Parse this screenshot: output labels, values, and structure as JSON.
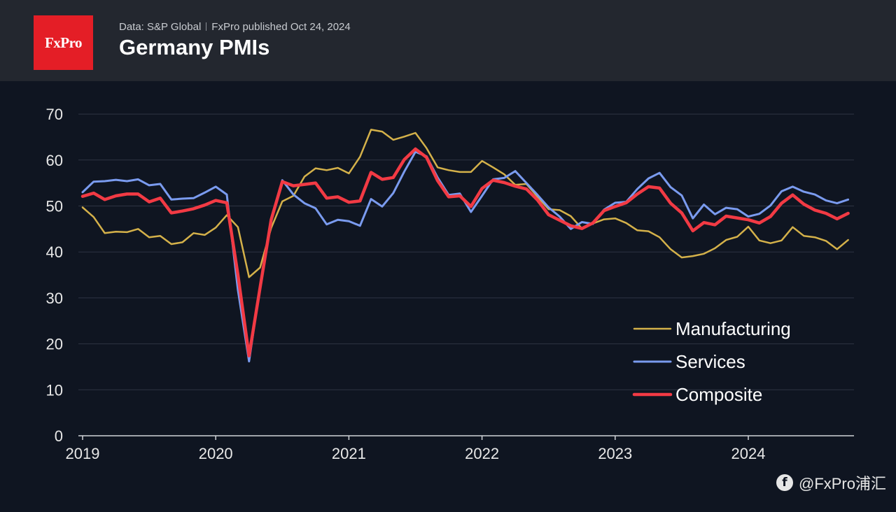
{
  "header": {
    "logo_text": "FxPro",
    "source": "Data: S&P Global",
    "published": "FxPro published Oct 24, 2024",
    "title": "Germany PMIs"
  },
  "watermark": {
    "text": "@FxPro浦汇",
    "icon": "social-app-icon"
  },
  "colors": {
    "background": "#0f1521",
    "header": "#23272f",
    "logo": "#e41e26",
    "manufacturing": "#d4b14a",
    "services": "#7a9bef",
    "composite": "#f23a44",
    "grid": "#2e3543"
  },
  "chart_data": {
    "type": "line",
    "title": "Germany PMIs",
    "xlabel": "",
    "ylabel": "",
    "ylim": [
      0,
      70
    ],
    "yticks": [
      0,
      10,
      20,
      30,
      40,
      50,
      60,
      70
    ],
    "xticks": [
      "2019",
      "2020",
      "2021",
      "2022",
      "2023",
      "2024"
    ],
    "x_start": "2019-01",
    "x_end": "2024-10",
    "grid": true,
    "legend_position": "lower-right",
    "series": [
      {
        "name": "Manufacturing",
        "values": [
          49.7,
          47.6,
          44.1,
          44.4,
          44.3,
          45.0,
          43.2,
          43.5,
          41.7,
          42.1,
          44.1,
          43.7,
          45.3,
          48.0,
          45.4,
          34.5,
          36.6,
          45.2,
          51.0,
          52.2,
          56.4,
          58.2,
          57.8,
          58.3,
          57.1,
          60.7,
          66.6,
          66.2,
          64.4,
          65.1,
          65.9,
          62.6,
          58.4,
          57.8,
          57.4,
          57.4,
          59.8,
          58.4,
          56.9,
          54.6,
          54.8,
          52.0,
          49.3,
          49.1,
          47.8,
          45.1,
          46.2,
          47.1,
          47.3,
          46.3,
          44.7,
          44.5,
          43.2,
          40.6,
          38.8,
          39.1,
          39.6,
          40.8,
          42.6,
          43.3,
          45.5,
          42.5,
          41.9,
          42.5,
          45.4,
          43.5,
          43.2,
          42.4,
          40.6,
          42.6
        ]
      },
      {
        "name": "Services",
        "values": [
          53.0,
          55.3,
          55.4,
          55.7,
          55.4,
          55.8,
          54.5,
          54.8,
          51.4,
          51.6,
          51.7,
          52.9,
          54.2,
          52.5,
          31.7,
          16.2,
          32.6,
          47.3,
          55.6,
          52.5,
          50.6,
          49.5,
          46.0,
          47.0,
          46.7,
          45.7,
          51.5,
          49.9,
          52.8,
          57.5,
          61.8,
          60.8,
          56.2,
          52.4,
          52.7,
          48.7,
          52.2,
          55.8,
          56.1,
          57.6,
          55.0,
          52.4,
          49.7,
          47.7,
          45.0,
          46.5,
          46.1,
          49.2,
          50.7,
          50.9,
          53.7,
          56.0,
          57.2,
          54.1,
          52.3,
          47.3,
          50.3,
          48.2,
          49.6,
          49.3,
          47.7,
          48.3,
          50.1,
          53.2,
          54.2,
          53.1,
          52.5,
          51.2,
          50.6,
          51.4
        ]
      },
      {
        "name": "Composite",
        "values": [
          52.1,
          52.8,
          51.4,
          52.2,
          52.6,
          52.6,
          50.9,
          51.7,
          48.5,
          48.9,
          49.4,
          50.2,
          51.2,
          50.7,
          35.0,
          17.4,
          32.3,
          47.0,
          55.3,
          54.4,
          54.7,
          55.0,
          51.7,
          52.0,
          50.8,
          51.1,
          57.3,
          55.8,
          56.2,
          60.1,
          62.4,
          60.6,
          55.5,
          52.0,
          52.2,
          49.9,
          53.8,
          55.6,
          55.1,
          54.3,
          53.7,
          51.3,
          48.1,
          46.9,
          45.7,
          45.1,
          46.3,
          49.0,
          49.9,
          50.7,
          52.6,
          54.2,
          53.9,
          50.6,
          48.5,
          44.6,
          46.4,
          45.9,
          47.8,
          47.4,
          47.0,
          46.3,
          47.7,
          50.6,
          52.4,
          50.4,
          49.1,
          48.4,
          47.2,
          48.4
        ]
      }
    ]
  }
}
